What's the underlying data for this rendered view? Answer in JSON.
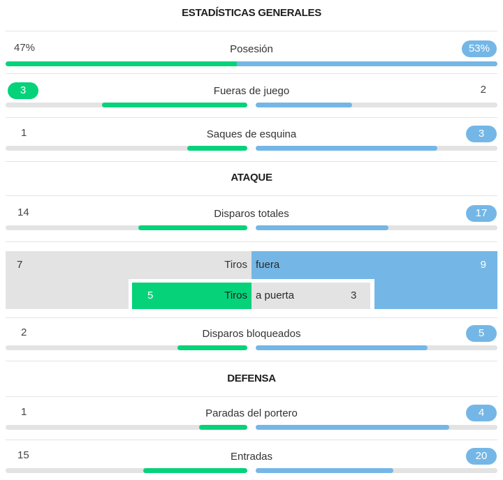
{
  "sections": {
    "general": "ESTADÍSTICAS GENERALES",
    "attack": "ATAQUE",
    "defense": "DEFENSA"
  },
  "colors": {
    "home": "#06d27a",
    "away": "#74b7e6",
    "track": "#e3e3e3"
  },
  "stats": {
    "possession": {
      "label": "Posesión",
      "home": "47%",
      "away": "53%",
      "home_share": 0.47
    },
    "offsides": {
      "label": "Fueras de juego",
      "home": "3",
      "away": "2",
      "home_fill": 0.6,
      "away_fill": 0.4
    },
    "corners": {
      "label": "Saques de esquina",
      "home": "1",
      "away": "3",
      "home_fill": 0.25,
      "away_fill": 0.75
    },
    "total_shots": {
      "label": "Disparos totales",
      "home": "14",
      "away": "17",
      "home_fill": 0.45,
      "away_fill": 0.55
    },
    "blocked_shots": {
      "label": "Disparos bloqueados",
      "home": "2",
      "away": "5",
      "home_fill": 0.29,
      "away_fill": 0.71
    },
    "saves": {
      "label": "Paradas del portero",
      "home": "1",
      "away": "4",
      "home_fill": 0.2,
      "away_fill": 0.8
    },
    "tackles": {
      "label": "Entradas",
      "home": "15",
      "away": "20",
      "home_fill": 0.43,
      "away_fill": 0.57
    }
  },
  "shots_breakdown": {
    "off_target": {
      "label_left": "Tiros",
      "label_right": "fuera",
      "home": "7",
      "away": "9"
    },
    "on_target": {
      "label_left": "Tiros",
      "label_right": "a puerta",
      "home": "5",
      "away": "3"
    }
  }
}
